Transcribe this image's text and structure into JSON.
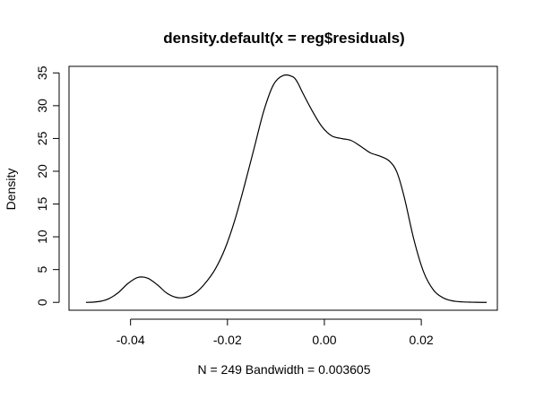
{
  "chart_data": {
    "type": "line",
    "title": "density.default(x = reg$residuals)",
    "xlabel": "N = 249   Bandwidth = 0.003605",
    "ylabel": "Density",
    "xlim": [
      -0.0527,
      0.0357
    ],
    "ylim": [
      -1.2,
      36.0
    ],
    "x_ticks": [
      -0.04,
      -0.02,
      0.0,
      0.02
    ],
    "x_tick_labels": [
      "-0.04",
      "-0.02",
      "0.00",
      "0.02"
    ],
    "y_ticks": [
      0,
      5,
      10,
      15,
      20,
      25,
      30,
      35
    ],
    "y_tick_labels": [
      "0",
      "5",
      "10",
      "15",
      "20",
      "25",
      "30",
      "35"
    ],
    "grid": false,
    "legend": "none",
    "series": [
      {
        "color": "#000000",
        "x": [
          -0.0492,
          -0.0475,
          -0.046,
          -0.0445,
          -0.0425,
          -0.0405,
          -0.0385,
          -0.0365,
          -0.0345,
          -0.0325,
          -0.0305,
          -0.0285,
          -0.0265,
          -0.0245,
          -0.0225,
          -0.0205,
          -0.0185,
          -0.0165,
          -0.0145,
          -0.0125,
          -0.0105,
          -0.0085,
          -0.0065,
          -0.0055,
          -0.0045,
          -0.0025,
          -0.0005,
          0.0015,
          0.0035,
          0.0055,
          0.0075,
          0.0095,
          0.0115,
          0.0135,
          0.015,
          0.0165,
          0.0185,
          0.0205,
          0.0225,
          0.0245,
          0.0265,
          0.0285,
          0.0305,
          0.0325,
          0.0335
        ],
        "y": [
          0.0,
          0.05,
          0.2,
          0.55,
          1.5,
          2.9,
          3.8,
          3.7,
          2.7,
          1.4,
          0.75,
          0.8,
          1.5,
          3.0,
          5.1,
          8.2,
          12.5,
          17.8,
          23.5,
          29.2,
          33.2,
          34.6,
          34.4,
          33.5,
          32.0,
          29.2,
          26.8,
          25.4,
          25.0,
          24.7,
          23.8,
          22.8,
          22.3,
          21.5,
          19.8,
          16.0,
          9.5,
          4.6,
          1.9,
          0.7,
          0.22,
          0.07,
          0.02,
          0.0,
          0.0
        ]
      }
    ]
  }
}
